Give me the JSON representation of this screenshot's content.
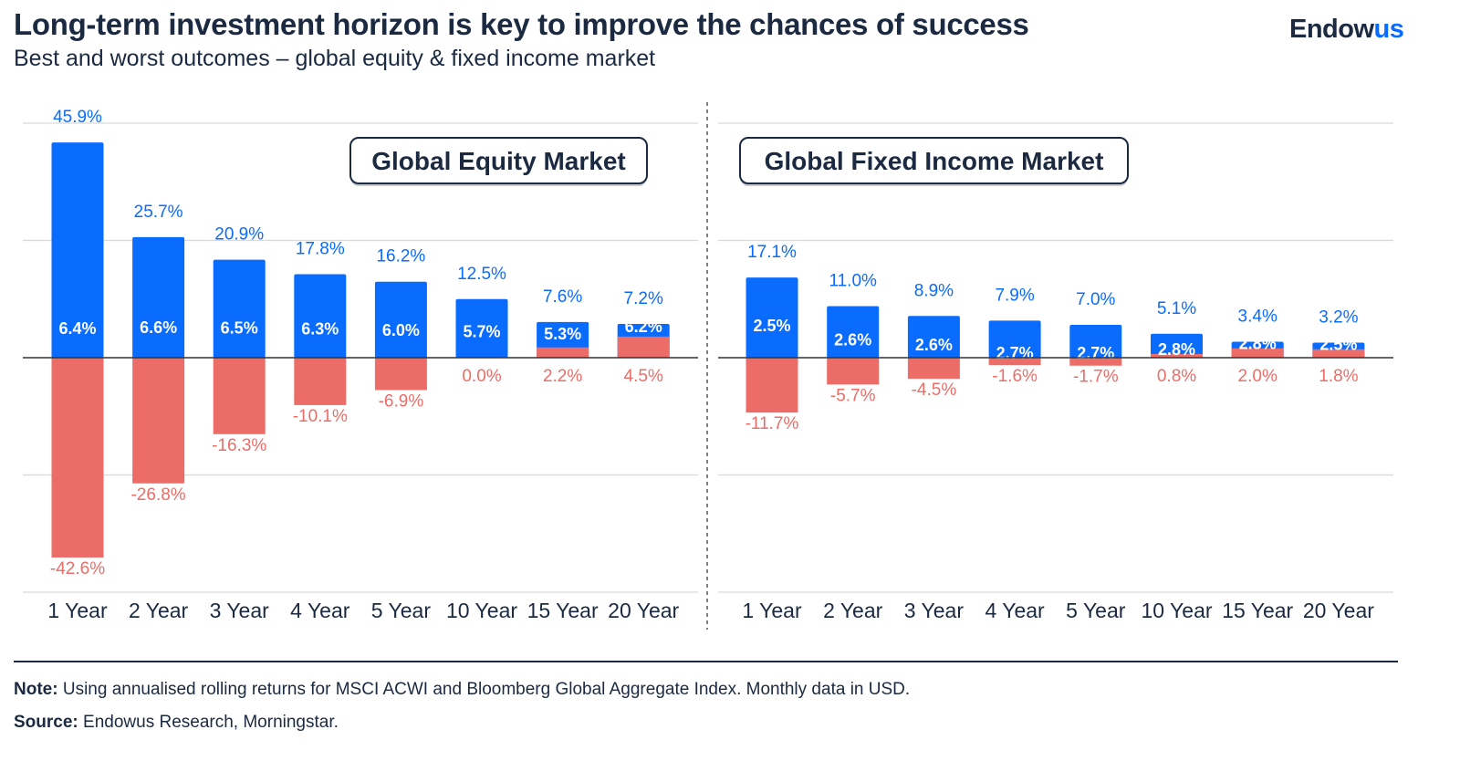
{
  "header": {
    "title": "Long-term investment horizon is key to improve the chances of success",
    "subtitle": "Best and worst outcomes – global equity & fixed income market",
    "logo": {
      "main": "Endow",
      "accent": "us"
    }
  },
  "colors": {
    "best": "#0a6cff",
    "worst": "#ec6d68",
    "text": "#1b2a41",
    "grid": "#d9d9d9"
  },
  "chart_data": [
    {
      "type": "bar",
      "title": "Global Equity Market",
      "categories": [
        "1 Year",
        "2 Year",
        "3 Year",
        "4 Year",
        "5 Year",
        "10 Year",
        "15 Year",
        "20 Year"
      ],
      "series": [
        {
          "key": "best",
          "values": [
            45.9,
            25.7,
            20.9,
            17.8,
            16.2,
            12.5,
            7.6,
            7.2
          ]
        },
        {
          "key": "median",
          "values": [
            6.4,
            6.6,
            6.5,
            6.3,
            6.0,
            5.7,
            5.3,
            6.2
          ]
        },
        {
          "key": "worst",
          "values": [
            -42.6,
            -26.8,
            -16.3,
            -10.1,
            -6.9,
            0.0,
            2.2,
            4.5
          ]
        }
      ],
      "ylim": [
        -50,
        50
      ],
      "grid": true,
      "gridlines": [
        50,
        25,
        0,
        -25,
        -50
      ],
      "unit": "%"
    },
    {
      "type": "bar",
      "title": "Global Fixed Income Market",
      "categories": [
        "1 Year",
        "2 Year",
        "3 Year",
        "4 Year",
        "5 Year",
        "10 Year",
        "15 Year",
        "20 Year"
      ],
      "series": [
        {
          "key": "best",
          "values": [
            17.1,
            11.0,
            8.9,
            7.9,
            7.0,
            5.1,
            3.4,
            3.2
          ]
        },
        {
          "key": "median",
          "values": [
            2.5,
            2.6,
            2.6,
            2.7,
            2.7,
            2.8,
            2.8,
            2.5
          ]
        },
        {
          "key": "worst",
          "values": [
            -11.7,
            -5.7,
            -4.5,
            -1.6,
            -1.7,
            0.8,
            2.0,
            1.8
          ]
        }
      ],
      "ylim": [
        -50,
        50
      ],
      "grid": true,
      "gridlines": [
        50,
        25,
        0,
        -25,
        -50
      ],
      "unit": "%"
    }
  ],
  "footer": {
    "note_label": "Note:",
    "note": " Using annualised rolling returns for MSCI ACWI and Bloomberg Global Aggregate Index. Monthly data in USD.",
    "source_label": "Source:",
    "source": " Endowus Research, Morningstar."
  }
}
